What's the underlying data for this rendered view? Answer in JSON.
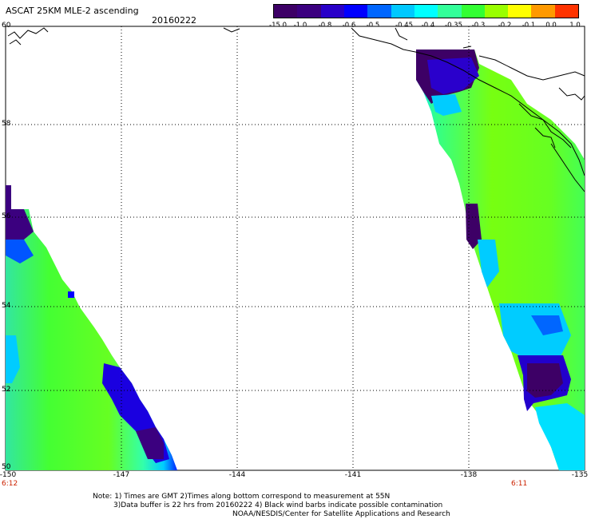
{
  "header": {
    "title": "ASCAT 25KM MLE-2 ascending",
    "date": "20160222"
  },
  "colorbar": {
    "labels": [
      "-15.0",
      "-1.0",
      "-0.8",
      "-0.6",
      "-0.5",
      "-0.45",
      "-0.4",
      "-0.35",
      "-0.3",
      "-0.2",
      "-0.1",
      "0.0",
      "1.0"
    ],
    "colors": [
      "#3d0066",
      "#3b007f",
      "#2800c8",
      "#0000ff",
      "#0066ff",
      "#00c8ff",
      "#00ffff",
      "#33ff99",
      "#33ff33",
      "#99ff00",
      "#ffff00",
      "#ff9900",
      "#ff3300"
    ]
  },
  "map": {
    "lat_labels": [
      "60",
      "58",
      "56",
      "54",
      "52",
      "50"
    ],
    "lon_labels": [
      "-150",
      "-147",
      "-144",
      "-141",
      "-138",
      "-135"
    ],
    "time_left": "6:12",
    "time_right": "6:11"
  },
  "notes": {
    "line1": "Note: 1) Times are GMT 2)Times along bottom correspond to measurement at 55N",
    "line2": "3)Data buffer is 22 hrs from 20160222 4) Black wind barbs indicate possible contamination",
    "line3": "NOAA/NESDIS/Center for Satellite Applications and Research"
  }
}
